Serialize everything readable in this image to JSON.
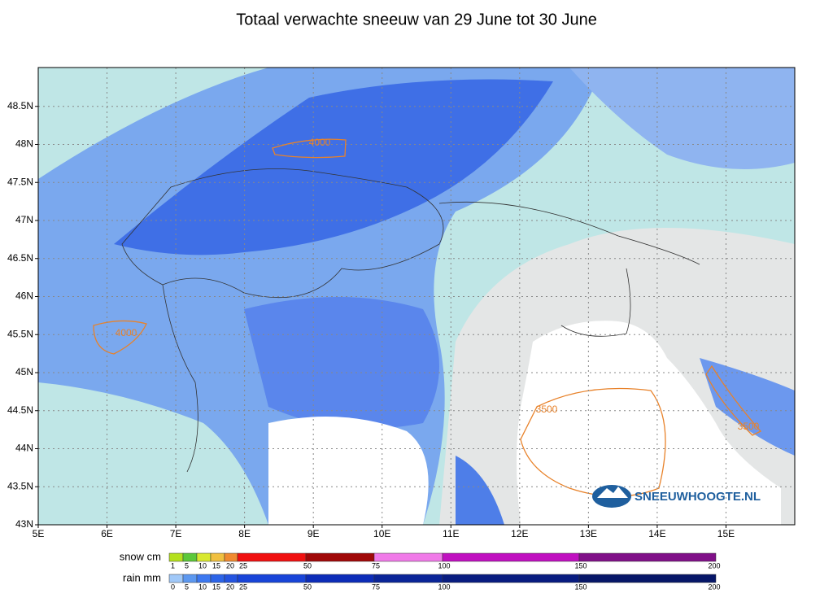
{
  "header": {
    "title": "Totaal verwachte sneeuw van 29 June tot 30 June"
  },
  "map": {
    "lon_labels": [
      "5E",
      "6E",
      "7E",
      "8E",
      "9E",
      "10E",
      "11E",
      "12E",
      "13E",
      "14E",
      "15E"
    ],
    "lat_labels": [
      "43N",
      "43.5N",
      "44N",
      "44.5N",
      "45N",
      "45.5N",
      "46N",
      "46.5N",
      "47N",
      "47.5N",
      "48N",
      "48.5N"
    ],
    "contour_labels": [
      "4000",
      "4000",
      "3500",
      "3500"
    ],
    "contour_color": "#e8822a",
    "logo": "SNEEUWHOOGTE.NL"
  },
  "legend": {
    "snow": {
      "label": "snow cm",
      "ticks": [
        "1",
        "5",
        "10",
        "15",
        "20",
        "25",
        "50",
        "75",
        "100",
        "150",
        "200"
      ],
      "colors": [
        "#b4e01e",
        "#5cc83a",
        "#d8e830",
        "#f0c040",
        "#f08a30",
        "#f01010",
        "#a00808",
        "#f07ae8",
        "#c010c0",
        "#801088"
      ]
    },
    "rain": {
      "label": "rain mm",
      "ticks": [
        "0",
        "5",
        "10",
        "15",
        "20",
        "25",
        "50",
        "75",
        "100",
        "150",
        "200"
      ],
      "colors": [
        "#a0c8f8",
        "#5c98f0",
        "#3c78f0",
        "#2c64e8",
        "#2454e0",
        "#1844d8",
        "#0c2cb8",
        "#0a2498",
        "#081c80",
        "#061668"
      ]
    }
  }
}
